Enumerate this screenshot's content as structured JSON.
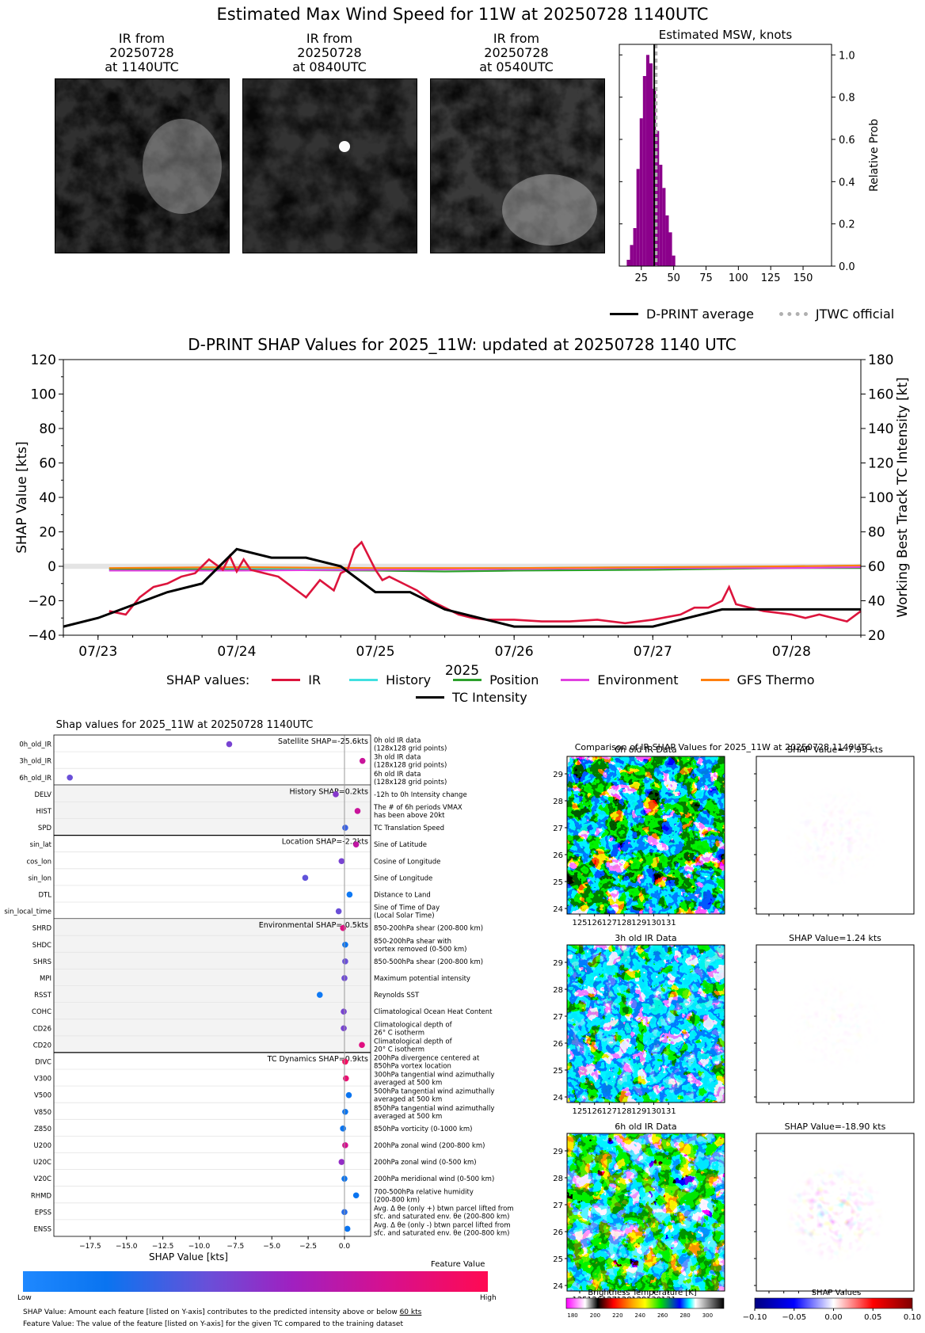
{
  "page_title": "Estimated Max Wind Speed for 11W at 20250728 1140UTC",
  "ir_panels": [
    {
      "line1": "IR from",
      "line2": "20250728",
      "line3": "at 1140UTC"
    },
    {
      "line1": "IR from",
      "line2": "20250728",
      "line3": "at 0840UTC"
    },
    {
      "line1": "IR from",
      "line2": "20250728",
      "line3": "at 0540UTC"
    }
  ],
  "colors": {
    "purple": "#8b008b",
    "ir": "#dc143c",
    "history": "#40e0e0",
    "position": "#2ca02c",
    "environment": "#e040e0",
    "gfs": "#ff7f0e",
    "tc": "#000000",
    "jtwc": "#b0b0b0"
  },
  "chart_data": [
    {
      "id": "msw-hist",
      "type": "bar",
      "title": "Estimated MSW, knots",
      "ylabel": "Relative Prob",
      "xlim": [
        8,
        172
      ],
      "ylim": [
        0,
        1.05
      ],
      "xticks": [
        25,
        50,
        75,
        100,
        125,
        150
      ],
      "yticks": [
        0.0,
        0.2,
        0.4,
        0.6,
        0.8,
        1.0
      ],
      "ytick_labels": [
        "0.0",
        "0.2",
        "0.4",
        "0.6",
        "0.8",
        "1.0"
      ],
      "bin_width": 2.5,
      "bins": [
        15,
        17.5,
        20,
        22.5,
        25,
        27.5,
        30,
        32.5,
        35,
        37.5,
        40,
        42.5,
        45,
        47.5,
        50
      ],
      "values": [
        0.03,
        0.1,
        0.18,
        0.46,
        0.7,
        0.9,
        1.0,
        0.96,
        0.84,
        0.64,
        0.48,
        0.37,
        0.24,
        0.16,
        0.05
      ],
      "dprint_average": 35,
      "jtwc_official": 36,
      "legend": {
        "dprint": "D-PRINT average",
        "jtwc": "JTWC official"
      }
    },
    {
      "id": "shap-time",
      "type": "line",
      "title": "D-PRINT SHAP Values for 2025_11W: updated at 20250728 1140 UTC",
      "ylabel": "SHAP Value [kts]",
      "y2label": "Working Best Track TC Intensity [kt]",
      "xlabel": "2025",
      "ylim": [
        -40,
        120
      ],
      "y2lim": [
        20,
        180
      ],
      "xlim": [
        -0.25,
        5.5
      ],
      "xticks": [
        0,
        1,
        2,
        3,
        4,
        5
      ],
      "xtick_labels": [
        "07/23",
        "07/24",
        "07/25",
        "07/26",
        "07/27",
        "07/28"
      ],
      "yticks": [
        -40,
        -20,
        0,
        20,
        40,
        60,
        80,
        100,
        120
      ],
      "y2ticks": [
        20,
        40,
        60,
        80,
        100,
        120,
        140,
        160,
        180
      ],
      "legend_prefix": "SHAP values:",
      "series": [
        {
          "name": "IR",
          "color_key": "ir",
          "x": [
            0.08,
            0.2,
            0.3,
            0.4,
            0.5,
            0.6,
            0.7,
            0.8,
            0.9,
            0.95,
            1.0,
            1.05,
            1.1,
            1.2,
            1.3,
            1.4,
            1.5,
            1.6,
            1.7,
            1.75,
            1.8,
            1.85,
            1.9,
            1.95,
            2.0,
            2.05,
            2.1,
            2.2,
            2.3,
            2.4,
            2.5,
            2.6,
            2.7,
            2.8,
            3.0,
            3.2,
            3.4,
            3.6,
            3.8,
            4.0,
            4.2,
            4.3,
            4.4,
            4.5,
            4.55,
            4.6,
            4.7,
            4.8,
            4.9,
            5.0,
            5.1,
            5.2,
            5.3,
            5.4,
            5.5
          ],
          "y": [
            -26,
            -28,
            -18,
            -12,
            -10,
            -6,
            -4,
            4,
            -2,
            6,
            -3,
            4,
            -2,
            -4,
            -6,
            -12,
            -18,
            -8,
            -14,
            -4,
            -2,
            10,
            14,
            6,
            -2,
            -8,
            -6,
            -10,
            -14,
            -20,
            -24,
            -28,
            -30,
            -31,
            -31,
            -32,
            -32,
            -31,
            -33,
            -31,
            -28,
            -24,
            -24,
            -20,
            -12,
            -22,
            -24,
            -26,
            -27,
            -28,
            -30,
            -28,
            -30,
            -32,
            -26
          ]
        },
        {
          "name": "History",
          "color_key": "history",
          "x": [
            0.08,
            1,
            2,
            3,
            4,
            5,
            5.5
          ],
          "y": [
            -2,
            -1.5,
            -1.5,
            -1,
            -0.5,
            0,
            0.5
          ]
        },
        {
          "name": "Position",
          "color_key": "position",
          "x": [
            0.08,
            1,
            2,
            2.5,
            3,
            4,
            5,
            5.5
          ],
          "y": [
            -1.5,
            -2,
            -2.5,
            -3,
            -2.5,
            -2,
            -1,
            -1
          ]
        },
        {
          "name": "Environment",
          "color_key": "environment",
          "x": [
            0.08,
            1,
            2,
            3,
            4,
            5,
            5.5
          ],
          "y": [
            -2.5,
            -2.5,
            -2,
            -1.5,
            -1,
            -1,
            -0.5
          ]
        },
        {
          "name": "GFS Thermo",
          "color_key": "gfs",
          "x": [
            0.08,
            1,
            2,
            3,
            4,
            5,
            5.5
          ],
          "y": [
            -1,
            -0.5,
            -1,
            -1,
            -0.5,
            0,
            0.5
          ]
        }
      ],
      "tc_intensity": {
        "name": "TC Intensity",
        "color_key": "tc",
        "x": [
          -0.25,
          0,
          0.5,
          0.75,
          1,
          1.25,
          1.5,
          1.75,
          2,
          2.25,
          2.5,
          3,
          3.5,
          4,
          4.5,
          5,
          5.5
        ],
        "y": [
          25,
          30,
          45,
          50,
          70,
          65,
          65,
          60,
          45,
          45,
          35,
          25,
          25,
          25,
          35,
          35,
          35
        ]
      }
    },
    {
      "id": "shap-features",
      "type": "scatter",
      "title": "Shap values for 2025_11W at 20250728 1140UTC",
      "xlabel": "SHAP Value [kts]",
      "xlim": [
        -20,
        1.8
      ],
      "xticks": [
        -17.5,
        -15.0,
        -12.5,
        -10.0,
        -7.5,
        -5.0,
        -2.5,
        0.0
      ],
      "xtick_labels": [
        "−17.5",
        "−15.0",
        "−12.5",
        "−10.0",
        "−7.5",
        "−5.0",
        "−2.5",
        "0.0"
      ],
      "groups": [
        {
          "label": "Satellite SHAP=-25.6kts",
          "shaded": false,
          "features": [
            {
              "name": "0h_old_IR",
              "desc": [
                "0h old IR data",
                "(128x128 grid points)"
              ],
              "shap": -7.93,
              "fv": 0.45
            },
            {
              "name": "3h_old_IR",
              "desc": [
                "3h old IR data",
                "(128x128 grid points)"
              ],
              "shap": 1.24,
              "fv": 0.75
            },
            {
              "name": "6h_old_IR",
              "desc": [
                "6h old IR data",
                "(128x128 grid points)"
              ],
              "shap": -18.9,
              "fv": 0.4
            }
          ]
        },
        {
          "label": "History SHAP=0.2kts",
          "shaded": true,
          "features": [
            {
              "name": "DELV",
              "desc": [
                "-12h to 0h Intensity change"
              ],
              "shap": -0.6,
              "fv": 0.5
            },
            {
              "name": "HIST",
              "desc": [
                "The # of 6h periods VMAX",
                "has been above 20kt"
              ],
              "shap": 0.9,
              "fv": 0.75
            },
            {
              "name": "SPD",
              "desc": [
                "TC Translation Speed"
              ],
              "shap": 0.05,
              "fv": 0.3
            }
          ]
        },
        {
          "label": "Location SHAP=-2.2kts",
          "shaded": false,
          "features": [
            {
              "name": "sin_lat",
              "desc": [
                "Sine of Latitude"
              ],
              "shap": 0.8,
              "fv": 0.72
            },
            {
              "name": "cos_lon",
              "desc": [
                "Cosine of Longitude"
              ],
              "shap": -0.2,
              "fv": 0.45
            },
            {
              "name": "sin_lon",
              "desc": [
                "Sine of Longitude"
              ],
              "shap": -2.7,
              "fv": 0.38
            },
            {
              "name": "DTL",
              "desc": [
                "Distance to Land"
              ],
              "shap": 0.35,
              "fv": 0.15
            },
            {
              "name": "sin_local_time",
              "desc": [
                "Sine of Time of Day",
                "(Local Solar Time)"
              ],
              "shap": -0.4,
              "fv": 0.4
            }
          ]
        },
        {
          "label": "Environmental SHAP=-0.5kts",
          "shaded": true,
          "features": [
            {
              "name": "SHRD",
              "desc": [
                "850-200hPa shear (200-800 km)"
              ],
              "shap": -0.1,
              "fv": 0.85
            },
            {
              "name": "SHDC",
              "desc": [
                "850-200hPa shear with",
                "vortex removed (0-500 km)"
              ],
              "shap": 0.05,
              "fv": 0.2
            },
            {
              "name": "SHRS",
              "desc": [
                "850-500hPa shear (200-800 km)"
              ],
              "shap": 0.05,
              "fv": 0.4
            },
            {
              "name": "MPI",
              "desc": [
                "Maximum potential intensity"
              ],
              "shap": 0.0,
              "fv": 0.42
            },
            {
              "name": "RSST",
              "desc": [
                "Reynolds SST"
              ],
              "shap": -1.7,
              "fv": 0.15
            },
            {
              "name": "COHC",
              "desc": [
                "Climatological Ocean Heat Content"
              ],
              "shap": -0.05,
              "fv": 0.45
            },
            {
              "name": "CD26",
              "desc": [
                "Climatological depth of",
                "26° C isotherm"
              ],
              "shap": -0.05,
              "fv": 0.45
            },
            {
              "name": "CD20",
              "desc": [
                "Climatological depth of",
                "20° C isotherm"
              ],
              "shap": 1.2,
              "fv": 0.85
            }
          ]
        },
        {
          "label": "TC Dynamics SHAP=0.9kts",
          "shaded": false,
          "features": [
            {
              "name": "DIVC",
              "desc": [
                "200hPa divergence centered at",
                "850hPa vortex location"
              ],
              "shap": 0.05,
              "fv": 0.95
            },
            {
              "name": "V300",
              "desc": [
                "300hPa tangential wind azimuthally",
                "averaged at 500 km"
              ],
              "shap": 0.1,
              "fv": 0.9
            },
            {
              "name": "V500",
              "desc": [
                "500hPa tangential wind azimuthally",
                "averaged at 500 km"
              ],
              "shap": 0.3,
              "fv": 0.2
            },
            {
              "name": "V850",
              "desc": [
                "850hPa tangential wind azimuthally",
                "averaged at 500 km"
              ],
              "shap": 0.05,
              "fv": 0.2
            },
            {
              "name": "Z850",
              "desc": [
                "850hPa vorticity (0-1000 km)"
              ],
              "shap": -0.1,
              "fv": 0.2
            },
            {
              "name": "U200",
              "desc": [
                "200hPa zonal wind (200-800 km)"
              ],
              "shap": 0.05,
              "fv": 0.8
            },
            {
              "name": "U20C",
              "desc": [
                "200hPa zonal wind (0-500 km)"
              ],
              "shap": -0.2,
              "fv": 0.55
            },
            {
              "name": "V20C",
              "desc": [
                "200hPa meridional wind (0-500 km)"
              ],
              "shap": 0.0,
              "fv": 0.2
            },
            {
              "name": "RHMD",
              "desc": [
                "700-500hPa relative humidity",
                "(200-800 km)"
              ],
              "shap": 0.8,
              "fv": 0.2
            },
            {
              "name": "EPSS",
              "desc": [
                "Avg. Δ θe (only +) btwn parcel lifted from",
                "sfc. and saturated env. θe (200-800 km)"
              ],
              "shap": 0.0,
              "fv": 0.25
            },
            {
              "name": "ENSS",
              "desc": [
                "Avg. Δ θe (only -) btwn parcel lifted from",
                "sfc. and saturated env. θe (200-800 km)"
              ],
              "shap": 0.2,
              "fv": 0.2
            }
          ]
        }
      ]
    }
  ],
  "feature_colorbar": {
    "title": "Feature Value",
    "low": "Low",
    "high": "High"
  },
  "notes": {
    "line1_prefix": "SHAP Value: Amount each feature [listed on Y-axis] contributes to the predicted intensity above or below",
    "line1_value": "60 kts",
    "line2": "Feature Value: The value of the feature [listed on Y-axis] for the given TC compared to the training dataset"
  },
  "comparison": {
    "title": "Comparison of IR SHAP Values for 2025_11W at 20250728 1140UTC",
    "rows": [
      {
        "ir_title": "0h old IR Data",
        "shap_title": "SHAP Value=-7.93 kts"
      },
      {
        "ir_title": "3h old IR Data",
        "shap_title": "SHAP Value=1.24 kts"
      },
      {
        "ir_title": "6h old IR Data",
        "shap_title": "SHAP Value=-18.90 kts"
      }
    ],
    "lon_ticks": [
      "125",
      "126",
      "127",
      "128",
      "129",
      "130",
      "131"
    ],
    "lat_ticks": [
      "29",
      "28",
      "27",
      "26",
      "25",
      "24"
    ],
    "bt_colorbar": {
      "title": "Brightness Temperature [K]",
      "ticks": [
        "180",
        "200",
        "220",
        "240",
        "260",
        "280",
        "300"
      ]
    },
    "shap_colorbar": {
      "title": "SHAP Values",
      "ticks": [
        "−0.10",
        "−0.05",
        "0.00",
        "0.05",
        "0.10"
      ]
    }
  }
}
